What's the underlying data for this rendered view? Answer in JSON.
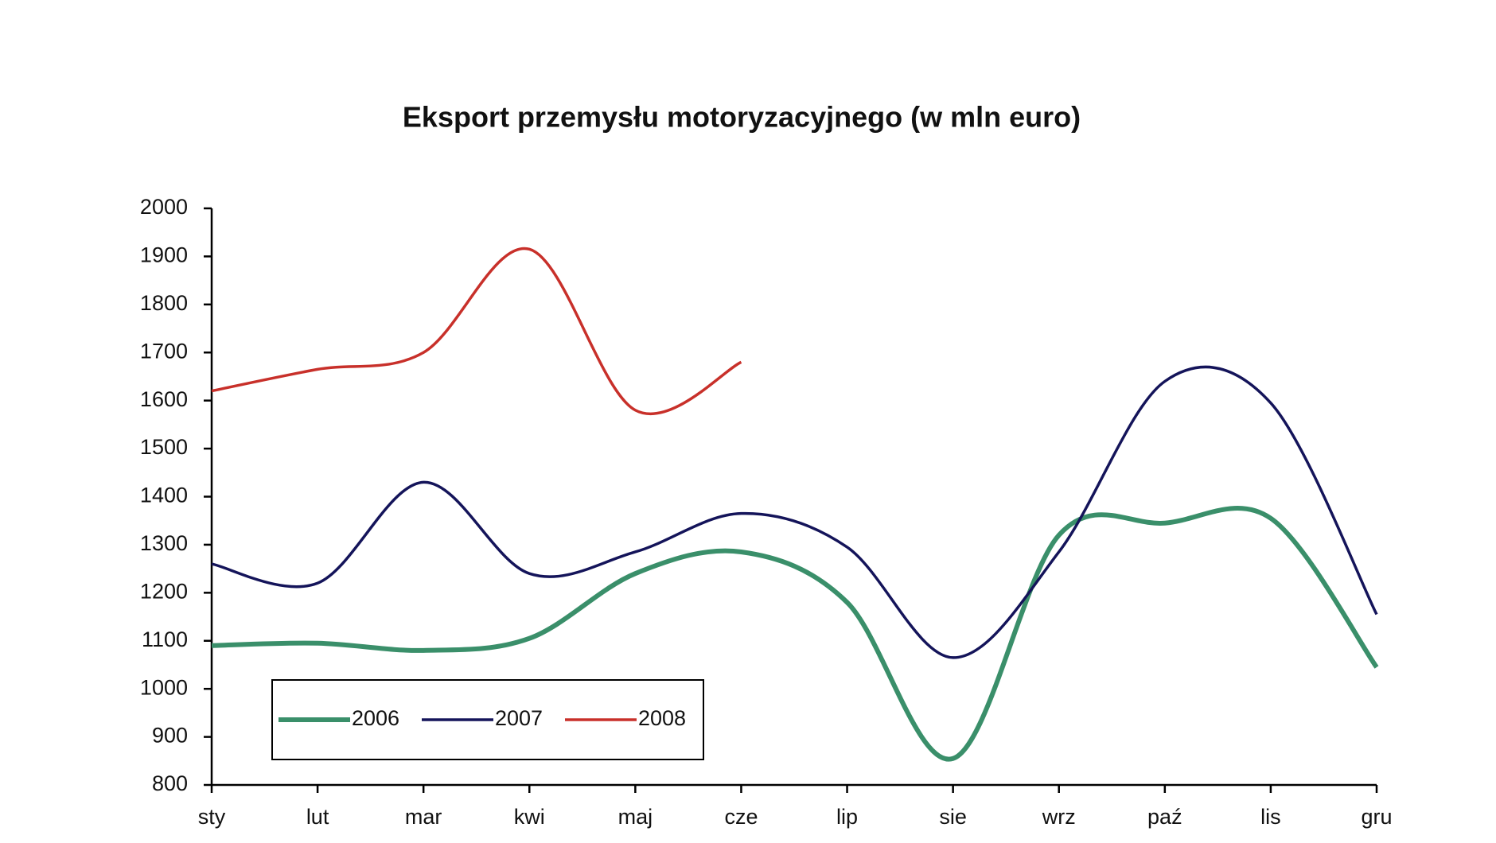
{
  "chart_data": {
    "type": "line",
    "title": "Eksport przemysłu motoryzacyjnego (w mln euro)",
    "categories": [
      "sty",
      "lut",
      "mar",
      "kwi",
      "maj",
      "cze",
      "lip",
      "sie",
      "wrz",
      "paź",
      "lis",
      "gru"
    ],
    "series": [
      {
        "name": "2006",
        "color": "#3a8f6a",
        "values": [
          1090,
          1095,
          1080,
          1105,
          1240,
          1285,
          1180,
          855,
          1320,
          1345,
          1355,
          1045
        ]
      },
      {
        "name": "2007",
        "color": "#14145a",
        "values": [
          1260,
          1220,
          1430,
          1240,
          1285,
          1365,
          1295,
          1065,
          1285,
          1640,
          1595,
          1155
        ]
      },
      {
        "name": "2008",
        "color": "#c8302a",
        "values": [
          1620,
          1665,
          1700,
          1915,
          1580,
          1680,
          null,
          null,
          null,
          null,
          null,
          null
        ]
      }
    ],
    "ylim": [
      800,
      2000
    ],
    "yticks": [
      800,
      900,
      1000,
      1100,
      1200,
      1300,
      1400,
      1500,
      1600,
      1700,
      1800,
      1900,
      2000
    ],
    "grid": false,
    "legend": "bottom-left"
  }
}
